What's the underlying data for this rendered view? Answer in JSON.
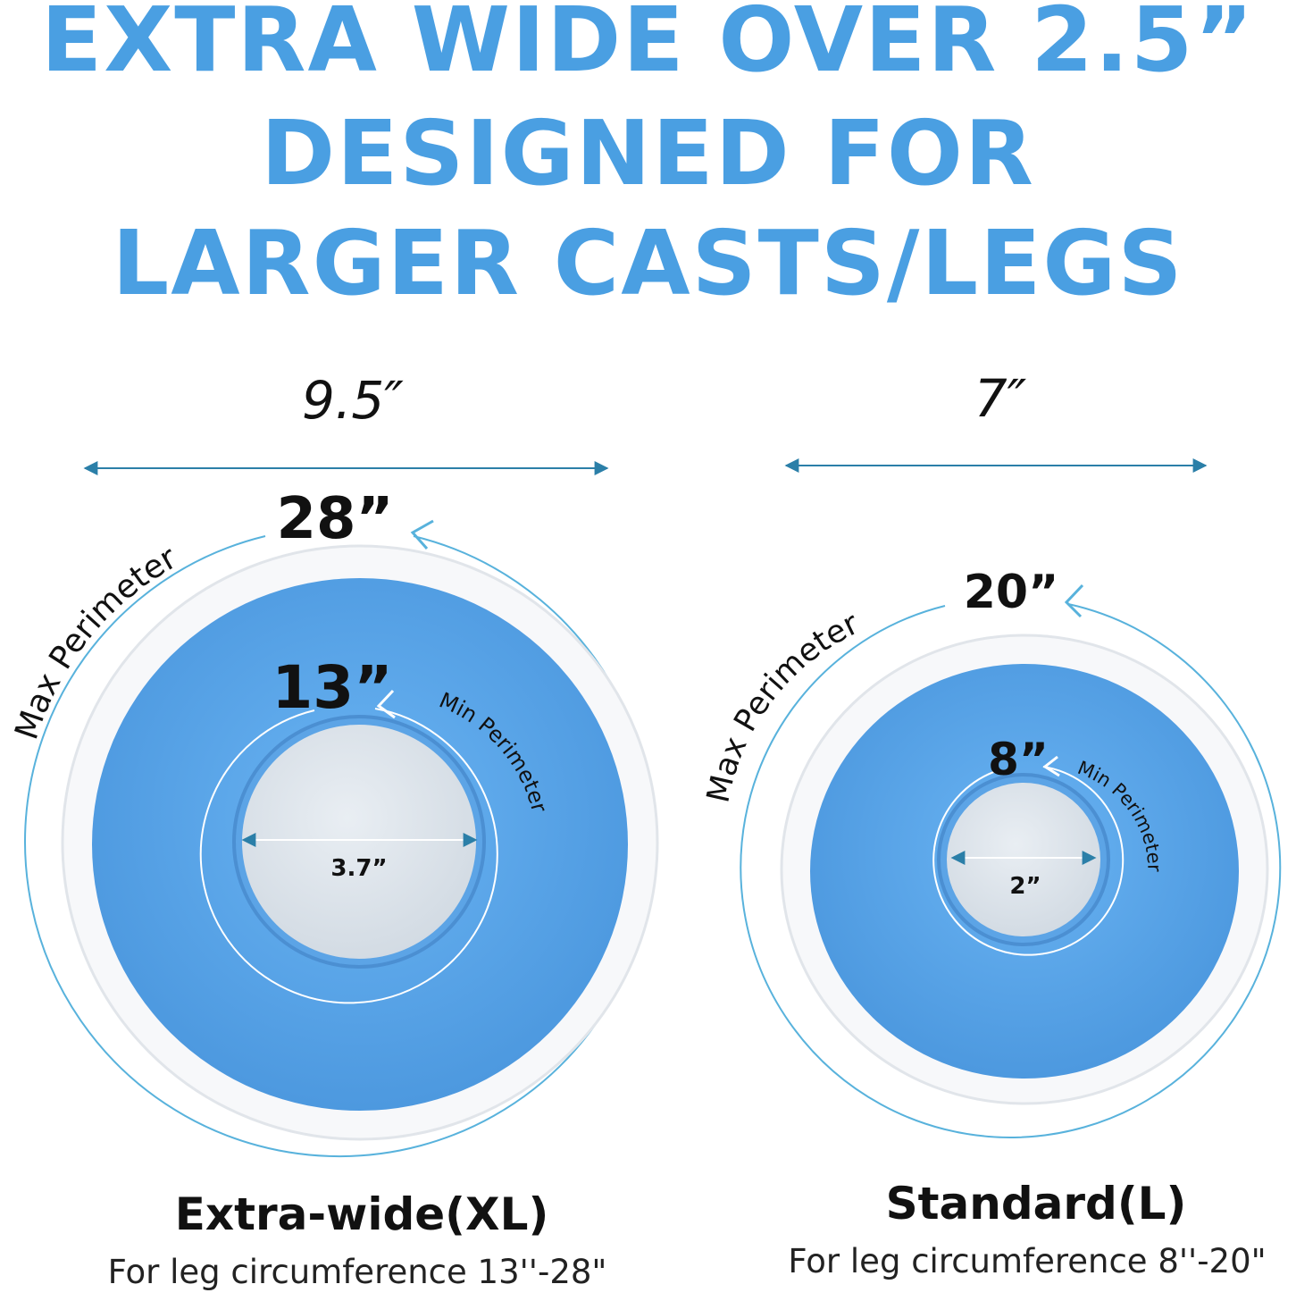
{
  "headline": {
    "line1": "EXTRA WIDE OVER 2.5”",
    "line2": "DESIGNED FOR",
    "line3": "LARGER CASTS/LEGS"
  },
  "products": [
    {
      "width_label": "9.5″",
      "max_value": "28”",
      "max_label": "Max Perimeter",
      "min_value": "13”",
      "min_label": "Min Perimeter",
      "opening_label": "3.7”",
      "name": "Extra-wide(XL)",
      "description": "For leg circumference 13''-28\""
    },
    {
      "width_label": "7″",
      "max_value": "20”",
      "max_label": "Max Perimeter",
      "min_value": "8”",
      "min_label": "Min Perimeter",
      "opening_label": "2”",
      "name": "Standard(L)",
      "description": "For leg circumference 8''-20\""
    }
  ],
  "colors": {
    "headline": "#4a9fe2",
    "cover_blue": "#5aa6ec",
    "outline": "#58b2dc",
    "dimension_arrow": "#2b7fa8"
  }
}
